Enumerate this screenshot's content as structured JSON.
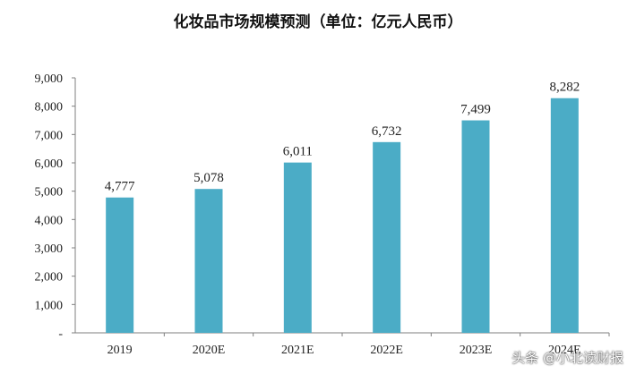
{
  "chart_data": {
    "type": "bar",
    "title": "化妆品市场规模预测（单位：亿元人民币）",
    "categories": [
      "2019",
      "2020E",
      "2021E",
      "2022E",
      "2023E",
      "2024E"
    ],
    "values": [
      4777,
      5078,
      6011,
      6732,
      7499,
      8282
    ],
    "value_labels": [
      "4,777",
      "5,078",
      "6,011",
      "6,732",
      "7,499",
      "8,282"
    ],
    "y_ticks": [
      "-",
      "1,000",
      "2,000",
      "3,000",
      "4,000",
      "5,000",
      "6,000",
      "7,000",
      "8,000",
      "9,000"
    ],
    "ylim": [
      0,
      9000
    ],
    "grid": false,
    "colors": {
      "bar": "#4bacc6"
    }
  },
  "watermark": "头条 @小北读财报"
}
